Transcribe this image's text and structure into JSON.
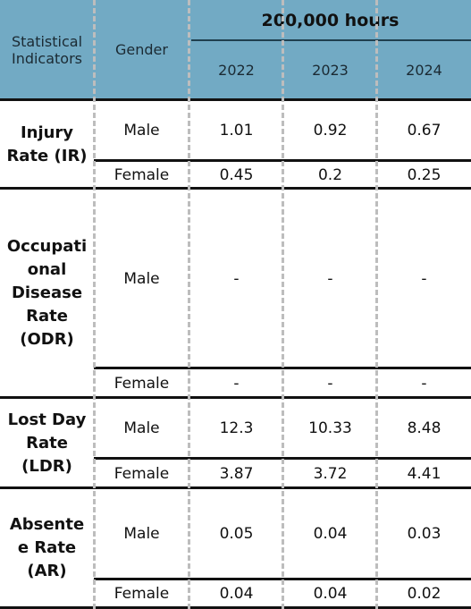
{
  "header": {
    "indicator": "Statistical Indicators",
    "gender": "Gender",
    "unit": "200,000 hours",
    "years": [
      "2022",
      "2023",
      "2024"
    ]
  },
  "groups": [
    {
      "indicator": "Injury Rate (IR)",
      "rows": [
        {
          "gender": "Male",
          "values": [
            1.01,
            0.92,
            0.67
          ]
        },
        {
          "gender": "Female",
          "values": [
            0.45,
            0.2,
            0.25
          ]
        }
      ]
    },
    {
      "indicator": "Occupational Disease Rate (ODR)",
      "rows": [
        {
          "gender": "Male",
          "values": [
            "-",
            "-",
            "-"
          ]
        },
        {
          "gender": "Female",
          "values": [
            "-",
            "-",
            "-"
          ]
        }
      ]
    },
    {
      "indicator": "Lost Day Rate (LDR)",
      "rows": [
        {
          "gender": "Male",
          "values": [
            12.3,
            10.33,
            8.48
          ]
        },
        {
          "gender": "Female",
          "values": [
            3.87,
            3.72,
            4.41
          ]
        }
      ]
    },
    {
      "indicator": "Absentee Rate (AR)",
      "rows": [
        {
          "gender": "Male",
          "values": [
            0.05,
            0.04,
            0.03
          ]
        },
        {
          "gender": "Female",
          "values": [
            0.04,
            0.04,
            0.02
          ]
        }
      ]
    }
  ]
}
